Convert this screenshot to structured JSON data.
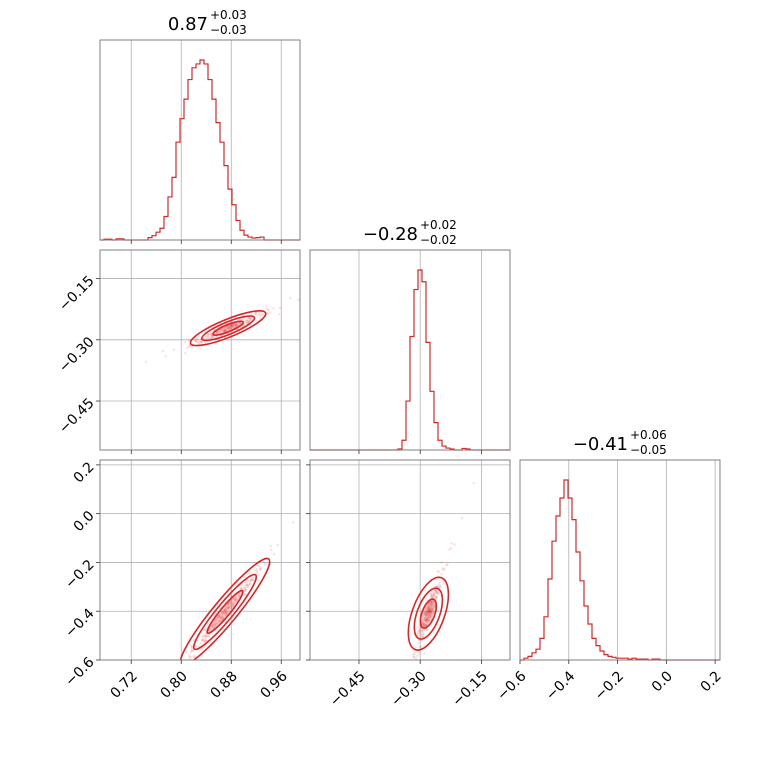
{
  "chart_data": {
    "type": "corner",
    "color": "#d62728",
    "grid": true,
    "parameters": [
      {
        "range": [
          0.67,
          0.99
        ],
        "ticks": [
          0.72,
          0.8,
          0.88,
          0.96
        ],
        "tick_labels": [
          "0.72",
          "0.80",
          "0.88",
          "0.96"
        ]
      },
      {
        "range": [
          -0.57,
          -0.08
        ],
        "ticks": [
          -0.45,
          -0.3,
          -0.15
        ],
        "tick_labels": [
          "−0.45",
          "−0.30",
          "−0.15"
        ]
      },
      {
        "range": [
          -0.6,
          0.22
        ],
        "ticks": [
          -0.6,
          -0.4,
          -0.2,
          0.0,
          0.2
        ],
        "tick_labels": [
          "−0.6",
          "−0.4",
          "−0.2",
          "0.0",
          "0.2"
        ]
      }
    ],
    "titles": [
      {
        "value": "0.87",
        "plus": "+0.03",
        "minus": "−0.03"
      },
      {
        "value": "−0.28",
        "plus": "+0.02",
        "minus": "−0.02"
      },
      {
        "value": "−0.41",
        "plus": "+0.06",
        "minus": "−0.05"
      }
    ],
    "histograms": [
      {
        "bin_start": 0.67,
        "bin_width": 0.0064,
        "counts": [
          0,
          0.4,
          0.4,
          0,
          0.6,
          0.6,
          0,
          0,
          0,
          0,
          0,
          0,
          1.2,
          2.2,
          4,
          6,
          12,
          22,
          32,
          50,
          62,
          72,
          82,
          88,
          90,
          92,
          90,
          82,
          72,
          60,
          50,
          38,
          26,
          18,
          10,
          5,
          2.5,
          1.5,
          1,
          1.2,
          1.5,
          0,
          0,
          0,
          0,
          0,
          0,
          0,
          0,
          0
        ]
      },
      {
        "bin_start": -0.57,
        "bin_width": 0.0098,
        "counts": [
          0,
          0,
          0,
          0,
          0,
          0,
          0,
          0,
          0,
          0,
          0,
          0,
          0,
          0,
          0,
          0,
          0,
          0,
          0,
          0,
          0,
          0,
          0.5,
          5,
          25,
          58,
          82,
          92,
          86,
          55,
          30,
          14,
          5,
          2,
          1,
          0.5,
          0,
          0,
          0.8,
          0.5,
          0,
          0,
          0,
          0,
          0,
          0,
          0,
          0,
          0,
          0
        ]
      },
      {
        "bin_start": -0.6,
        "bin_width": 0.0164,
        "counts": [
          0,
          1,
          2,
          4,
          6,
          12,
          24,
          45,
          66,
          80,
          90,
          100,
          90,
          78,
          60,
          44,
          30,
          20,
          12,
          8,
          5,
          3,
          2,
          1.5,
          1,
          1,
          1,
          0.5,
          1,
          0.5,
          0.5,
          0.5,
          0,
          0.5,
          0.5,
          0,
          0,
          0,
          0,
          0,
          0,
          0,
          0,
          0,
          0,
          0,
          0,
          0,
          0,
          0
        ]
      }
    ],
    "correlations": [
      {
        "pair": [
          0,
          1
        ],
        "slope": 0.625,
        "intercept": -0.8185,
        "x_center": 0.875,
        "x_sd": 0.03,
        "y_sd": 0.008
      },
      {
        "pair": [
          0,
          2
        ],
        "slope": 3.1,
        "intercept": -3.1,
        "x_center": 0.87,
        "x_sd": 0.035,
        "y_sd": 0.02
      },
      {
        "pair": [
          1,
          2
        ],
        "slope": 4.6,
        "intercept": 0.878,
        "x_center": -0.28,
        "x_sd": 0.016,
        "y_sd": 0.03
      }
    ]
  }
}
